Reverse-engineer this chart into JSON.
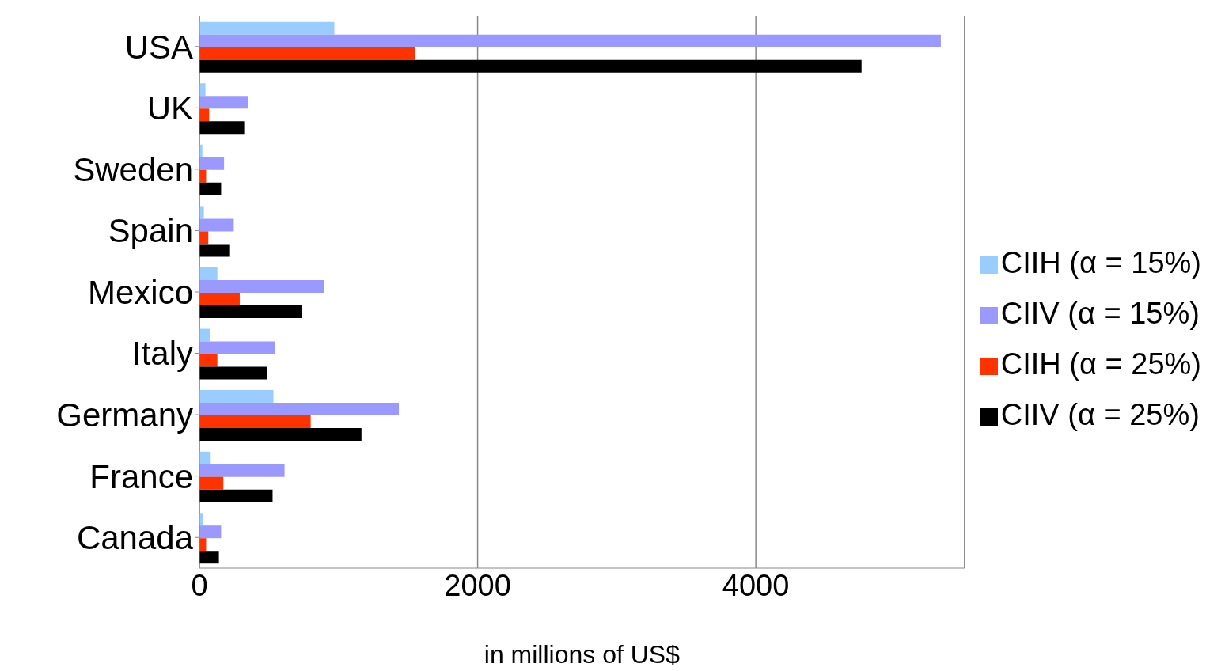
{
  "chart_data": {
    "type": "bar",
    "orientation": "horizontal",
    "xlabel": "in millions of US$",
    "categories": [
      "USA",
      "UK",
      "Sweden",
      "Spain",
      "Mexico",
      "Italy",
      "Germany",
      "France",
      "Canada"
    ],
    "series": [
      {
        "name": "CIIH (α = 15%)",
        "color": "#99ccff",
        "values": [
          970,
          43,
          21,
          32,
          129,
          75,
          532,
          81,
          27
        ]
      },
      {
        "name": "CIIV (α = 15%)",
        "color": "#9999ff",
        "values": [
          5330,
          349,
          177,
          247,
          897,
          542,
          1434,
          612,
          156
        ]
      },
      {
        "name": "CIIH (α = 25%)",
        "color": "#ff3300",
        "values": [
          1550,
          70,
          48,
          64,
          290,
          129,
          800,
          172,
          48
        ]
      },
      {
        "name": "CIIV (α = 25%)",
        "color": "#000000",
        "values": [
          4760,
          322,
          156,
          220,
          736,
          489,
          1165,
          526,
          140
        ]
      }
    ],
    "xlim": [
      0,
      5500
    ],
    "xticks": [
      0,
      2000,
      4000
    ],
    "grid": "x",
    "legend": "right"
  }
}
